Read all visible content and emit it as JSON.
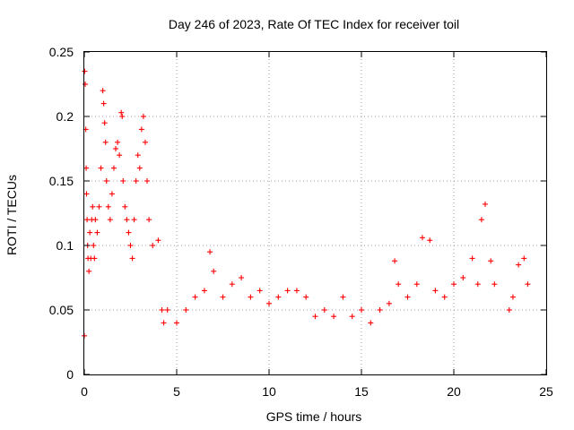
{
  "chart_data": {
    "type": "scatter",
    "title": "Day 246 of 2023, Rate Of TEC Index for receiver toil",
    "xlabel": "GPS time / hours",
    "ylabel": "ROTI / TECUs",
    "xlim": [
      0,
      25
    ],
    "ylim": [
      0,
      0.25
    ],
    "grid": true,
    "marker": "+",
    "color": "#ff0000",
    "x_ticks": [
      0,
      5,
      10,
      15,
      20,
      25
    ],
    "x_tick_labels": [
      "0",
      "5",
      "10",
      "15",
      "20",
      "25"
    ],
    "y_ticks": [
      0,
      0.05,
      0.1,
      0.15,
      0.2,
      0.25
    ],
    "y_tick_labels": [
      "0",
      "0.05",
      "0.1",
      "0.15",
      "0.2",
      "0.25"
    ],
    "series": [
      {
        "name": "ROTI",
        "x": [
          0.0,
          0.02,
          0.05,
          0.08,
          0.1,
          0.12,
          0.15,
          0.18,
          0.2,
          0.25,
          0.3,
          0.35,
          0.4,
          0.45,
          0.5,
          0.55,
          0.6,
          0.7,
          0.8,
          0.9,
          1.0,
          1.05,
          1.1,
          1.15,
          1.2,
          1.3,
          1.4,
          1.5,
          1.6,
          1.7,
          1.8,
          1.9,
          2.0,
          2.05,
          2.1,
          2.2,
          2.3,
          2.4,
          2.5,
          2.6,
          2.7,
          2.8,
          2.9,
          3.0,
          3.1,
          3.2,
          3.3,
          3.4,
          3.5,
          3.7,
          4.0,
          4.2,
          4.3,
          4.5,
          5.0,
          5.5,
          6.0,
          6.5,
          6.8,
          7.0,
          7.5,
          8.0,
          8.5,
          9.0,
          9.5,
          10.0,
          10.5,
          11.0,
          11.5,
          12.0,
          12.5,
          13.0,
          13.5,
          14.0,
          14.5,
          15.0,
          15.5,
          16.0,
          16.5,
          16.8,
          17.0,
          17.5,
          18.0,
          18.3,
          18.7,
          19.0,
          19.5,
          20.0,
          20.5,
          21.0,
          21.3,
          21.5,
          21.7,
          22.0,
          22.2,
          23.0,
          23.2,
          23.5,
          23.8,
          24.0
        ],
        "y": [
          0.03,
          0.235,
          0.225,
          0.19,
          0.16,
          0.14,
          0.12,
          0.1,
          0.09,
          0.08,
          0.11,
          0.09,
          0.12,
          0.13,
          0.1,
          0.09,
          0.12,
          0.11,
          0.13,
          0.16,
          0.22,
          0.21,
          0.195,
          0.18,
          0.15,
          0.13,
          0.12,
          0.14,
          0.16,
          0.175,
          0.18,
          0.17,
          0.203,
          0.2,
          0.15,
          0.13,
          0.12,
          0.11,
          0.1,
          0.09,
          0.12,
          0.15,
          0.17,
          0.16,
          0.19,
          0.2,
          0.18,
          0.15,
          0.12,
          0.1,
          0.104,
          0.05,
          0.04,
          0.05,
          0.04,
          0.05,
          0.06,
          0.065,
          0.095,
          0.08,
          0.06,
          0.07,
          0.075,
          0.06,
          0.065,
          0.055,
          0.06,
          0.065,
          0.065,
          0.06,
          0.045,
          0.05,
          0.045,
          0.06,
          0.045,
          0.05,
          0.04,
          0.05,
          0.055,
          0.088,
          0.07,
          0.06,
          0.07,
          0.106,
          0.104,
          0.065,
          0.06,
          0.07,
          0.075,
          0.09,
          0.07,
          0.12,
          0.132,
          0.088,
          0.07,
          0.05,
          0.06,
          0.085,
          0.09,
          0.07
        ]
      }
    ]
  }
}
